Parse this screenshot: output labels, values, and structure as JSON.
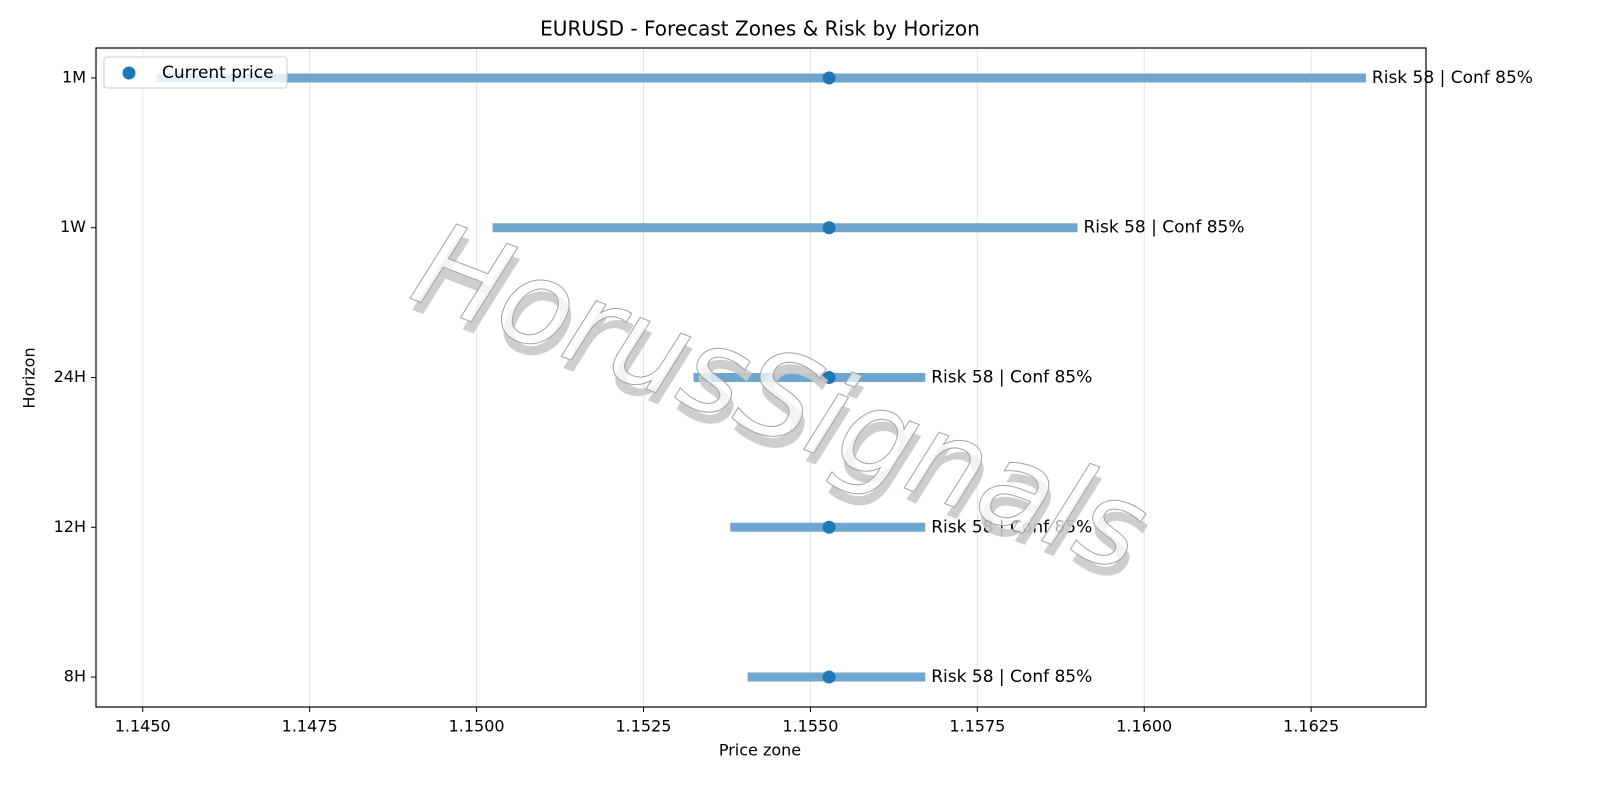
{
  "chart_data": {
    "type": "range",
    "title": "EURUSD - Forecast Zones & Risk by Horizon",
    "x_label": "Price zone",
    "y_label": "Horizon",
    "watermark": "HorusSignals",
    "categories": [
      "8H",
      "12H",
      "24H",
      "1W",
      "1M"
    ],
    "low": [
      1.15406,
      1.1538,
      1.15325,
      1.15024,
      1.14521
    ],
    "high": [
      1.15672,
      1.15672,
      1.15672,
      1.159,
      1.16332
    ],
    "range_color": "#6fa6d0",
    "annotations": [
      "Risk 58 | Conf 85%",
      "Risk 58 | Conf 85%",
      "Risk 58 | Conf 85%",
      "Risk 58 | Conf 85%",
      "Risk 58 | Conf 85%"
    ],
    "current": {
      "name": "Current price",
      "color": "#1f77b4",
      "values": [
        1.15528,
        1.15528,
        1.15528,
        1.15528,
        1.15528
      ]
    },
    "xlim": [
      1.1443,
      1.16422
    ],
    "xticks": [
      {
        "value": 1.145,
        "label": "1.1450"
      },
      {
        "value": 1.1475,
        "label": "1.1475"
      },
      {
        "value": 1.15,
        "label": "1.1500"
      },
      {
        "value": 1.1525,
        "label": "1.1525"
      },
      {
        "value": 1.155,
        "label": "1.1550"
      },
      {
        "value": 1.1575,
        "label": "1.1575"
      },
      {
        "value": 1.16,
        "label": "1.1600"
      },
      {
        "value": 1.1625,
        "label": "1.1625"
      }
    ],
    "grid": true,
    "legend": "upper left"
  }
}
